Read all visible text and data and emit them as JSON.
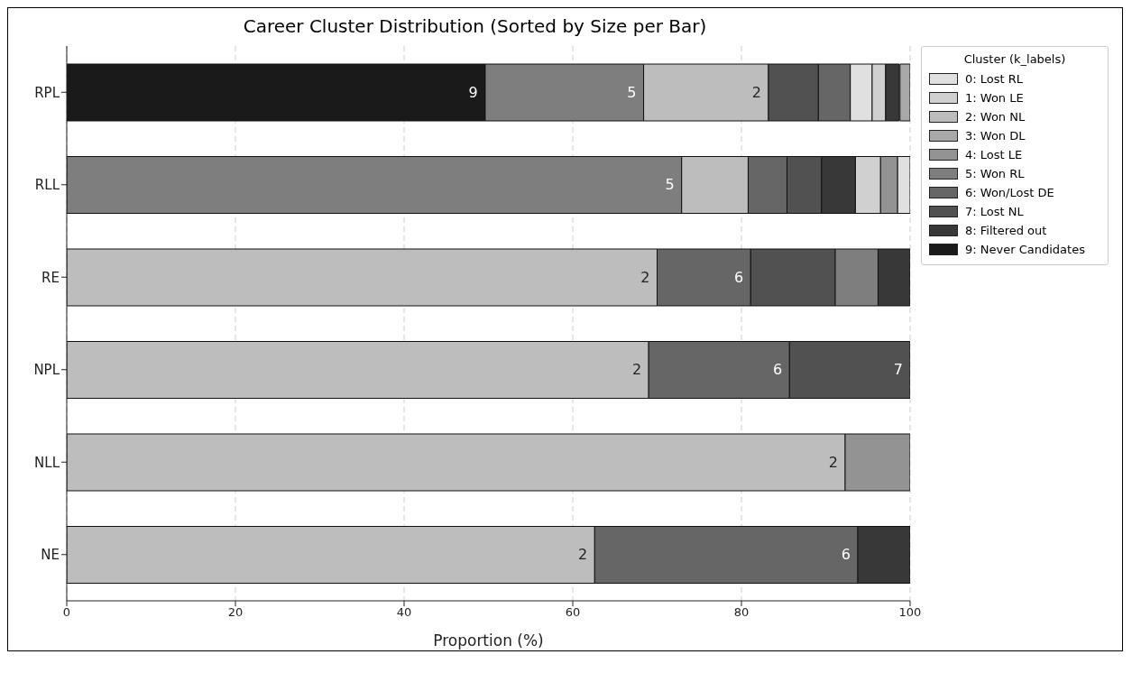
{
  "chart_data": {
    "type": "bar",
    "orientation": "horizontal",
    "title": "Career Cluster Distribution (Sorted by Size per Bar)",
    "xlabel": "Proportion (%)",
    "categories": [
      "RPL",
      "RLL",
      "RE",
      "NPL",
      "NLL",
      "NE"
    ],
    "xlim": [
      0,
      100
    ],
    "xticks": [
      0,
      20,
      40,
      60,
      80,
      100
    ],
    "grid": "x",
    "legend": "top right",
    "legend_title": "Cluster (k_labels)",
    "series": [
      {
        "name": "0: Lost RL",
        "color": "#e0e0e0",
        "values": [
          2.6,
          1.5,
          null,
          null,
          null,
          null
        ],
        "base": [
          92.9,
          98.5,
          null,
          null,
          null,
          null
        ]
      },
      {
        "name": "1: Won LE",
        "color": "#d0d0d0",
        "values": [
          1.6,
          3.0,
          null,
          null,
          null,
          null
        ],
        "base": [
          95.5,
          93.5,
          null,
          null,
          null,
          null
        ]
      },
      {
        "name": "2: Won NL",
        "color": "#bdbdbd",
        "values": [
          14.8,
          7.9,
          70.0,
          69.0,
          92.3,
          62.6
        ],
        "base": [
          68.4,
          72.9,
          0,
          0,
          0,
          0
        ]
      },
      {
        "name": "3: Won DL",
        "color": "#a8a8a8",
        "values": [
          1.2,
          null,
          null,
          null,
          null,
          null
        ],
        "base": [
          98.8,
          null,
          null,
          null,
          null,
          null
        ]
      },
      {
        "name": "4: Lost LE",
        "color": "#939393",
        "values": [
          null,
          2.0,
          null,
          null,
          7.7,
          null
        ],
        "base": [
          null,
          96.5,
          null,
          null,
          92.3,
          null
        ]
      },
      {
        "name": "5: Won RL",
        "color": "#7e7e7e",
        "values": [
          18.8,
          72.9,
          5.1,
          null,
          null,
          null
        ],
        "base": [
          49.6,
          0,
          91.1,
          null,
          null,
          null
        ]
      },
      {
        "name": "6: Won/Lost DE",
        "color": "#666666",
        "values": [
          3.8,
          4.6,
          11.1,
          16.7,
          null,
          31.2
        ],
        "base": [
          89.1,
          80.8,
          70.0,
          69.0,
          null,
          62.6
        ]
      },
      {
        "name": "7: Lost NL",
        "color": "#515151",
        "values": [
          5.9,
          4.1,
          10.0,
          14.3,
          null,
          null
        ],
        "base": [
          83.2,
          85.4,
          81.1,
          85.7,
          null,
          null
        ]
      },
      {
        "name": "8: Filtered out",
        "color": "#383838",
        "values": [
          1.6,
          4.0,
          3.8,
          null,
          null,
          6.2
        ],
        "base": [
          97.1,
          89.5,
          96.2,
          null,
          null,
          93.8
        ]
      },
      {
        "name": "9: Never Candidates",
        "color": "#1a1a1a",
        "values": [
          49.6,
          null,
          null,
          null,
          null,
          null
        ],
        "base": [
          0,
          null,
          null,
          null,
          null,
          null
        ]
      }
    ],
    "annotations": [
      {
        "text": "9",
        "x": 49.6,
        "y": "RPL"
      },
      {
        "text": "5",
        "x": 68.4,
        "y": "RPL"
      },
      {
        "text": "2",
        "x": 83.2,
        "y": "RPL"
      },
      {
        "text": "5",
        "x": 72.9,
        "y": "RLL"
      },
      {
        "text": "2",
        "x": 70.0,
        "y": "RE"
      },
      {
        "text": "6",
        "x": 81.1,
        "y": "RE"
      },
      {
        "text": "2",
        "x": 69.0,
        "y": "NPL"
      },
      {
        "text": "6",
        "x": 85.7,
        "y": "NPL"
      },
      {
        "text": "7",
        "x": 100.0,
        "y": "NPL"
      },
      {
        "text": "2",
        "x": 92.3,
        "y": "NLL"
      },
      {
        "text": "2",
        "x": 62.6,
        "y": "NE"
      },
      {
        "text": "6",
        "x": 93.8,
        "y": "NE"
      }
    ]
  }
}
